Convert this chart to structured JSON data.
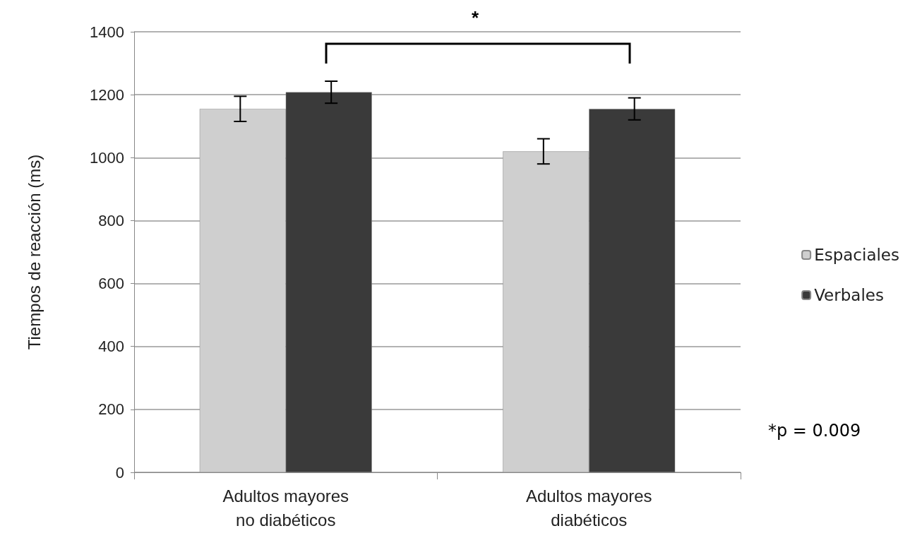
{
  "chart_data": {
    "type": "bar",
    "ylabel": "Tiempos de reacción (ms)",
    "categories": [
      "Adultos mayores\nno diabéticos",
      "Adultos mayores\ndiabéticos"
    ],
    "series": [
      {
        "name": "Espaciales",
        "color": "#cfcfcf",
        "values": [
          1155,
          1020
        ],
        "errors": [
          40,
          40
        ]
      },
      {
        "name": "Verbales",
        "color": "#3a3a3a",
        "values": [
          1208,
          1155
        ],
        "errors": [
          35,
          35
        ]
      }
    ],
    "ylim": [
      0,
      1400
    ],
    "yticks": [
      0,
      200,
      400,
      600,
      800,
      1000,
      1200,
      1400
    ],
    "grid": "y",
    "legend": "right",
    "annotations": [
      "*",
      "*p = 0.009"
    ]
  }
}
